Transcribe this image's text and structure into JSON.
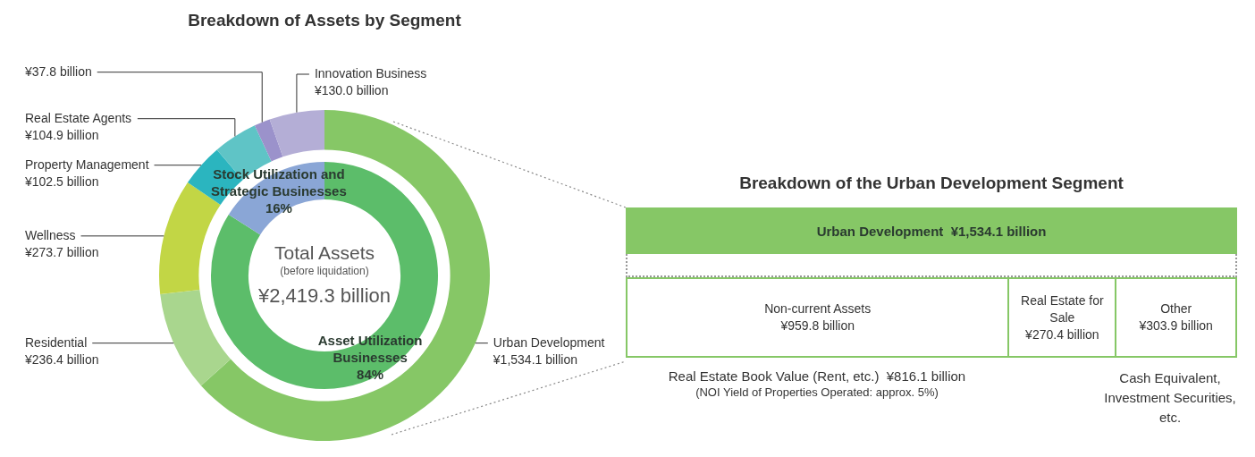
{
  "chart_data": [
    {
      "type": "donut",
      "title": "Breakdown of Assets by Segment",
      "categories": [
        "Urban Development",
        "Residential",
        "Wellness",
        "Property Management",
        "Real Estate Agents",
        null,
        "Innovation Business"
      ],
      "values": [
        1534.1,
        236.4,
        273.7,
        102.5,
        104.9,
        37.8,
        130.0
      ],
      "colors": [
        "#86c766",
        "#a9d68e",
        "#c2d645",
        "#2bb5bf",
        "#5fc4c6",
        "#9b92cb",
        "#b4aed6"
      ],
      "value_labels": [
        "¥1,534.1 billion",
        "¥236.4 billion",
        "¥273.7 billion",
        "¥102.5 billion",
        "¥104.9 billion",
        "¥37.8 billion",
        "¥130.0 billion"
      ]
    },
    {
      "type": "donut",
      "categories": [
        "Asset Utilization Businesses",
        "Stock Utilization and Strategic Businesses"
      ],
      "values": [
        84,
        16
      ],
      "colors": [
        "#5cbd6a",
        "#8aa6d6"
      ],
      "value_labels": [
        "84%",
        "16%"
      ],
      "annotations": [
        "Total Assets",
        "(before liquidation)",
        "¥2,419.3 billion"
      ]
    },
    {
      "type": "other",
      "title": "Breakdown of the Urban Development Segment",
      "categories": [
        "Non-current Assets",
        "Real Estate for Sale",
        "Other"
      ],
      "values": [
        959.8,
        270.4,
        303.9
      ],
      "value_labels": [
        "¥959.8 billion",
        "¥270.4 billion",
        "¥303.9 billion"
      ],
      "color": "#86c766",
      "annotations": [
        "Urban Development  ¥1,534.1 billion",
        "Real Estate Book Value (Rent, etc.)  ¥816.1 billion",
        "(NOI Yield of Properties Operated: approx. 5%)",
        "Cash Equivalent, Investment Securities, etc."
      ]
    }
  ]
}
